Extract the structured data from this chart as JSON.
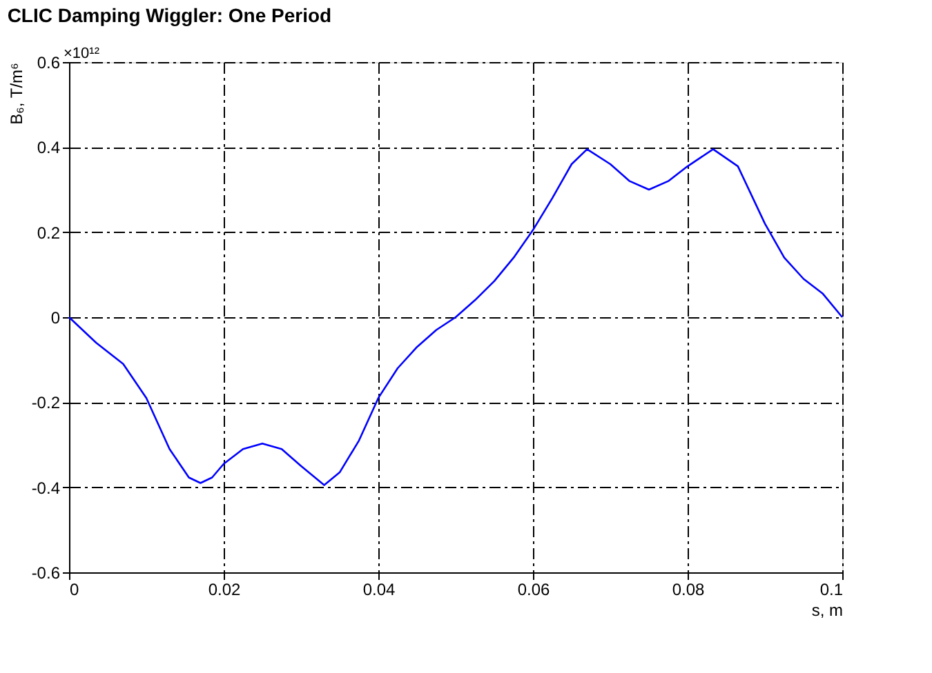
{
  "chart_data": {
    "type": "line",
    "title": "CLIC Damping Wiggler: One Period",
    "xlabel": "s, m",
    "ylabel": "B₆, T/m⁶",
    "annotations": [
      "×10¹²"
    ],
    "x": [
      0,
      0.0035,
      0.007,
      0.01,
      0.013,
      0.0155,
      0.017,
      0.0185,
      0.02,
      0.0225,
      0.025,
      0.0275,
      0.03,
      0.033,
      0.035,
      0.0375,
      0.04,
      0.0425,
      0.045,
      0.0475,
      0.05,
      0.0525,
      0.055,
      0.0575,
      0.06,
      0.0625,
      0.065,
      0.067,
      0.07,
      0.0725,
      0.075,
      0.0775,
      0.08,
      0.0833,
      0.0865,
      0.09,
      0.0925,
      0.095,
      0.0975,
      0.1
    ],
    "series": [
      {
        "color": "#0000ff",
        "values": [
          0,
          -0.06,
          -0.11,
          -0.19,
          -0.31,
          -0.377,
          -0.39,
          -0.377,
          -0.345,
          -0.31,
          -0.297,
          -0.31,
          -0.35,
          -0.395,
          -0.365,
          -0.29,
          -0.19,
          -0.12,
          -0.07,
          -0.03,
          0,
          0.04,
          0.085,
          0.14,
          0.205,
          0.28,
          0.36,
          0.395,
          0.36,
          0.32,
          0.3,
          0.32,
          0.355,
          0.395,
          0.355,
          0.22,
          0.14,
          0.09,
          0.055,
          0
        ]
      }
    ],
    "xlim": [
      0,
      0.1
    ],
    "xticks": [
      0,
      0.02,
      0.04,
      0.06,
      0.08,
      0.1
    ],
    "ylim": [
      -0.6,
      0.6
    ],
    "yticks": [
      -0.6,
      -0.4,
      -0.2,
      0,
      0.2,
      0.4,
      0.6
    ],
    "grid": true,
    "marker": "none",
    "line_style": "solid"
  }
}
